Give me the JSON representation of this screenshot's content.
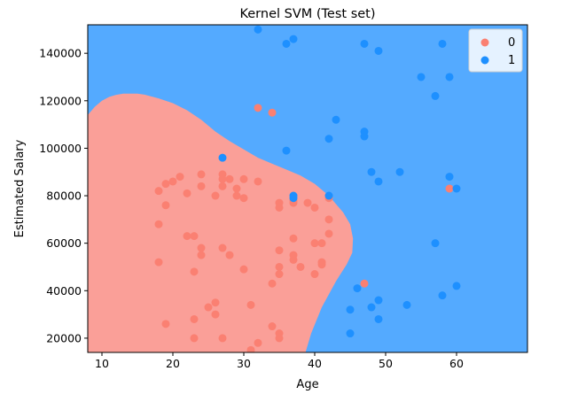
{
  "chart_data": {
    "type": "scatter",
    "title": "Kernel SVM (Test set)",
    "xlabel": "Age",
    "ylabel": "Estimated Salary",
    "xlim": [
      8,
      70
    ],
    "ylim": [
      14000,
      152000
    ],
    "xticks": [
      10,
      20,
      30,
      40,
      50,
      60
    ],
    "yticks": [
      20000,
      40000,
      60000,
      80000,
      100000,
      120000,
      140000
    ],
    "legend": {
      "placement": "top-right",
      "entries": [
        "0",
        "1"
      ]
    },
    "colors": {
      "region_0": "#fa9f98",
      "region_1": "#54aaff",
      "class_0": "#fa8072",
      "class_1": "#1e90ff"
    },
    "decision_region_0": {
      "description": "Red region boundary (data units), traced clockwise",
      "boundary": [
        [
          8,
          14000
        ],
        [
          8,
          114000
        ],
        [
          9,
          117500
        ],
        [
          10,
          120000
        ],
        [
          11,
          121600
        ],
        [
          12,
          122500
        ],
        [
          13,
          123000
        ],
        [
          15,
          123000
        ],
        [
          16,
          122600
        ],
        [
          18,
          121000
        ],
        [
          20,
          119000
        ],
        [
          22,
          116000
        ],
        [
          24,
          112000
        ],
        [
          26,
          107000
        ],
        [
          28,
          103000
        ],
        [
          30,
          99500
        ],
        [
          32,
          96000
        ],
        [
          34,
          93500
        ],
        [
          36,
          91000
        ],
        [
          38,
          88500
        ],
        [
          40,
          85000
        ],
        [
          42,
          80000
        ],
        [
          44,
          73000
        ],
        [
          45,
          68000
        ],
        [
          45.4,
          62000
        ],
        [
          45.3,
          56000
        ],
        [
          44.5,
          51000
        ],
        [
          43,
          44000
        ],
        [
          41,
          33000
        ],
        [
          39.5,
          22000
        ],
        [
          38.7,
          14000
        ]
      ]
    },
    "series": [
      {
        "name": "0",
        "points": [
          [
            18,
            82000
          ],
          [
            19,
            85000
          ],
          [
            20,
            86000
          ],
          [
            21,
            88000
          ],
          [
            22,
            81000
          ],
          [
            24,
            84000
          ],
          [
            24,
            89000
          ],
          [
            26,
            80000
          ],
          [
            27,
            89000
          ],
          [
            27,
            87000
          ],
          [
            27,
            84000
          ],
          [
            28,
            87000
          ],
          [
            29,
            83000
          ],
          [
            29,
            80000
          ],
          [
            30,
            79000
          ],
          [
            30,
            87000
          ],
          [
            32,
            86000
          ],
          [
            35,
            77000
          ],
          [
            35,
            75000
          ],
          [
            37,
            78000
          ],
          [
            37,
            77000
          ],
          [
            39,
            77000
          ],
          [
            40,
            75000
          ],
          [
            42,
            79000
          ],
          [
            42,
            70000
          ],
          [
            42,
            64000
          ],
          [
            40,
            60000
          ],
          [
            41,
            60000
          ],
          [
            41,
            52000
          ],
          [
            41,
            51000
          ],
          [
            40,
            47000
          ],
          [
            38,
            50000
          ],
          [
            37,
            55000
          ],
          [
            37,
            53000
          ],
          [
            37,
            62000
          ],
          [
            35,
            57000
          ],
          [
            35,
            50000
          ],
          [
            35,
            47000
          ],
          [
            34,
            43000
          ],
          [
            30,
            49000
          ],
          [
            28,
            55000
          ],
          [
            27,
            58000
          ],
          [
            24,
            58000
          ],
          [
            24,
            55000
          ],
          [
            23,
            63000
          ],
          [
            22,
            63000
          ],
          [
            23,
            48000
          ],
          [
            19,
            76000
          ],
          [
            18,
            68000
          ],
          [
            18,
            52000
          ],
          [
            26,
            35000
          ],
          [
            25,
            33000
          ],
          [
            26,
            30000
          ],
          [
            23,
            28000
          ],
          [
            31,
            34000
          ],
          [
            34,
            25000
          ],
          [
            35,
            22000
          ],
          [
            35,
            20000
          ],
          [
            32,
            18000
          ],
          [
            31,
            15000
          ],
          [
            27,
            20000
          ],
          [
            23,
            20000
          ],
          [
            19,
            26000
          ],
          [
            32,
            117000
          ],
          [
            34,
            115000
          ],
          [
            47,
            43000
          ],
          [
            59,
            83000
          ]
        ]
      },
      {
        "name": "1",
        "points": [
          [
            32,
            150000
          ],
          [
            36,
            144000
          ],
          [
            37,
            146000
          ],
          [
            47,
            144000
          ],
          [
            49,
            141000
          ],
          [
            58,
            144000
          ],
          [
            55,
            130000
          ],
          [
            59,
            130000
          ],
          [
            57,
            122000
          ],
          [
            43,
            112000
          ],
          [
            42,
            104000
          ],
          [
            47,
            107000
          ],
          [
            47,
            105000
          ],
          [
            36,
            99000
          ],
          [
            27,
            96000
          ],
          [
            48,
            90000
          ],
          [
            52,
            90000
          ],
          [
            49,
            86000
          ],
          [
            59,
            88000
          ],
          [
            60,
            83000
          ],
          [
            37,
            79000
          ],
          [
            37,
            80000
          ],
          [
            42,
            80000
          ],
          [
            57,
            60000
          ],
          [
            60,
            42000
          ],
          [
            58,
            38000
          ],
          [
            53,
            34000
          ],
          [
            49,
            36000
          ],
          [
            48,
            33000
          ],
          [
            46,
            41000
          ],
          [
            45,
            32000
          ],
          [
            49,
            28000
          ],
          [
            45,
            22000
          ]
        ]
      }
    ]
  }
}
